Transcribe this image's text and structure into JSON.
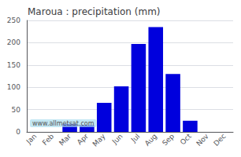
{
  "chart_data": {
    "type": "bar",
    "title": "Maroua : precipitation (mm)",
    "categories": [
      "Jan",
      "Feb",
      "Mar",
      "Apr",
      "May",
      "Jun",
      "Jul",
      "Aug",
      "Sep",
      "Oct",
      "Nov",
      "Dec"
    ],
    "values": [
      0,
      0,
      18,
      15,
      65,
      102,
      197,
      235,
      130,
      25,
      0,
      0
    ],
    "color": "#0000dd",
    "ylim": [
      0,
      250
    ],
    "yticks": [
      0,
      50,
      100,
      150,
      200,
      250
    ],
    "grid": true,
    "annotations": [
      "www.allmetsat.com"
    ]
  }
}
